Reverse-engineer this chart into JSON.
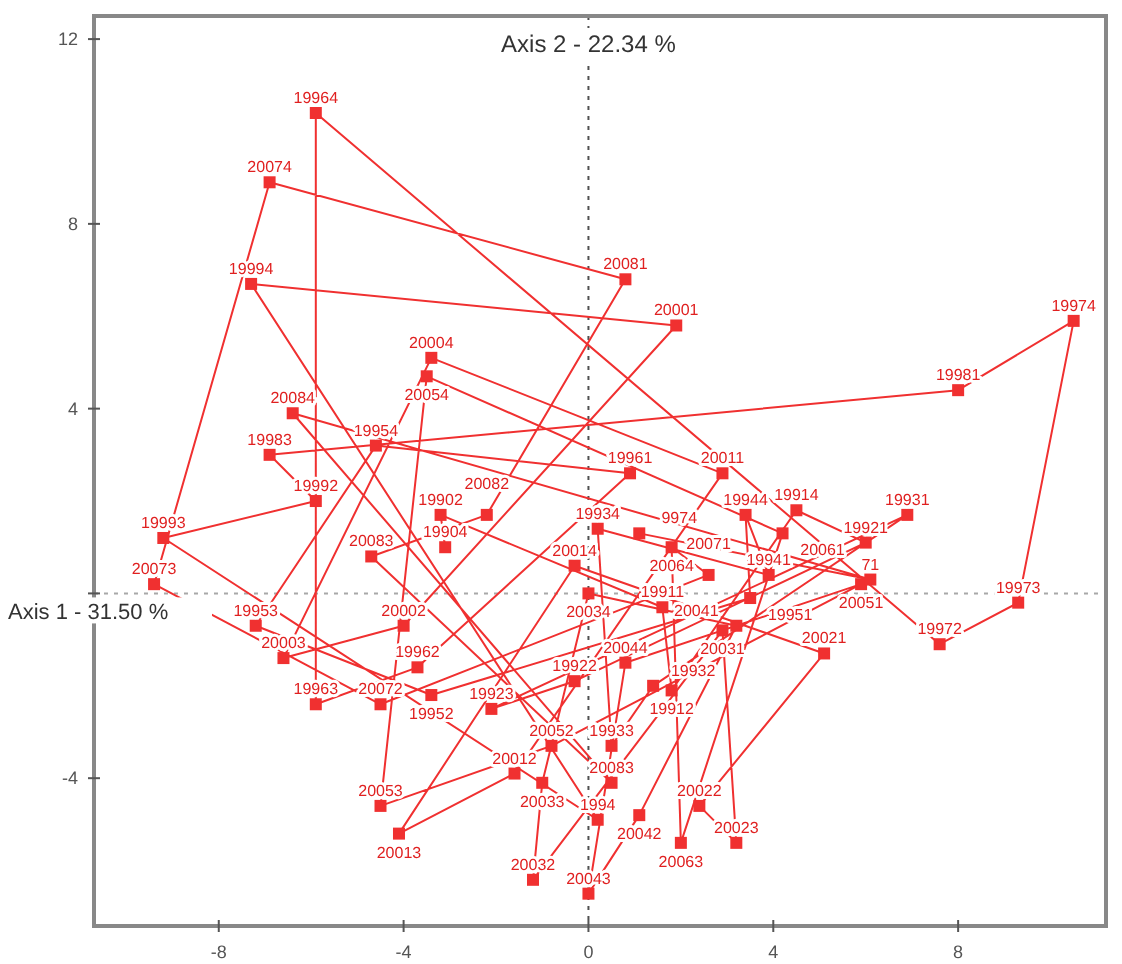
{
  "chart_data": {
    "type": "line",
    "xlabel": "Axis 1  -  31.50 %",
    "ylabel": "Axis 2  -  22.34 %",
    "xlim": [
      -10.7,
      11.2
    ],
    "ylim": [
      -7.2,
      12.5
    ],
    "xticks": [
      -8,
      -4,
      0,
      4,
      8
    ],
    "yticks": [
      -4,
      {
        "value": 0,
        "label": null
      },
      4,
      8,
      12
    ],
    "grid": false,
    "marker": "square",
    "line_style": "solid",
    "ref_lines": [
      {
        "axis": "x",
        "value": 0,
        "line_style": "dotted",
        "color": "#505050"
      },
      {
        "axis": "y",
        "value": 0,
        "line_style": "dotted",
        "color": "#a8a8a8"
      }
    ],
    "series": [
      {
        "color": "#f03030",
        "x": [
          -3.1,
          -3.2,
          1.6,
          1.8,
          4.5,
          6.0,
          -0.3,
          -2.1,
          6.9,
          1.4,
          0.5,
          0.2,
          3.9,
          3.4,
          3.5,
          -3.4,
          -7.2,
          -4.6,
          0.9,
          -3.7,
          -5.9,
          -5.9,
          7.6,
          9.3,
          10.5,
          8.0,
          -6.9,
          -5.9,
          -9.2,
          0.2,
          -7.3,
          1.9,
          -4.0,
          -6.6,
          -3.4,
          2.9,
          -1.6,
          -4.1,
          -0.3,
          5.1,
          2.4,
          3.2,
          2.9,
          -1.2,
          -1.0,
          0.0,
          3.2,
          1.1,
          0.0,
          0.8,
          5.9,
          -0.8,
          -4.5,
          -3.5,
          4.2,
          2.0,
          1.8,
          2.6,
          -4.5,
          -9.4,
          -6.9,
          0.8,
          -2.2,
          -4.7,
          0.5,
          -6.4,
          6.1,
          1.1
        ],
        "values": [
          1.0,
          1.7,
          -0.3,
          -2.1,
          1.8,
          1.1,
          -1.9,
          -2.5,
          1.7,
          -2.0,
          -3.3,
          1.4,
          0.4,
          1.7,
          -0.1,
          -2.2,
          -0.7,
          3.2,
          2.6,
          -1.6,
          -2.4,
          10.4,
          -1.1,
          -0.2,
          5.9,
          4.4,
          3.0,
          2.0,
          1.2,
          -4.9,
          6.7,
          5.8,
          -0.7,
          -1.4,
          5.1,
          2.6,
          -3.9,
          -5.2,
          0.6,
          -1.3,
          -4.6,
          -5.4,
          -0.8,
          -6.2,
          -4.1,
          0.0,
          -0.7,
          -4.8,
          -6.5,
          -1.5,
          0.2,
          -3.3,
          -4.6,
          4.7,
          1.3,
          -5.4,
          1.0,
          0.4,
          -2.4,
          0.2,
          8.9,
          6.8,
          1.7,
          0.8,
          -4.1,
          3.9,
          0.3,
          1.3
        ]
      }
    ],
    "annotations": [
      {
        "text": "19904",
        "x": -3.1,
        "y": 1.0
      },
      {
        "text": "19902",
        "x": -3.2,
        "y": 1.7
      },
      {
        "text": "19911",
        "x": 1.6,
        "y": -0.3
      },
      {
        "text": "19912",
        "x": 1.8,
        "y": -2.1
      },
      {
        "text": "19914",
        "x": 4.5,
        "y": 1.8
      },
      {
        "text": "19921",
        "x": 6.0,
        "y": 1.1
      },
      {
        "text": "19922",
        "x": -0.3,
        "y": -1.9
      },
      {
        "text": "19923",
        "x": -2.1,
        "y": -2.5
      },
      {
        "text": "19931",
        "x": 6.9,
        "y": 1.7
      },
      {
        "text": "19932",
        "x": 1.4,
        "y": -2.0
      },
      {
        "text": "19933",
        "x": 0.5,
        "y": -3.3
      },
      {
        "text": "19934",
        "x": 0.2,
        "y": 1.4
      },
      {
        "text": "19941",
        "x": 3.9,
        "y": 0.4
      },
      {
        "text": "19944",
        "x": 3.4,
        "y": 1.7
      },
      {
        "text": "19951",
        "x": 3.5,
        "y": -0.1
      },
      {
        "text": "19952",
        "x": -3.4,
        "y": -2.2
      },
      {
        "text": "19953",
        "x": -7.2,
        "y": -0.7
      },
      {
        "text": "19954",
        "x": -4.6,
        "y": 3.2
      },
      {
        "text": "19961",
        "x": 0.9,
        "y": 2.6
      },
      {
        "text": "19962",
        "x": -3.7,
        "y": -1.6
      },
      {
        "text": "19963",
        "x": -5.9,
        "y": -2.4
      },
      {
        "text": "19964",
        "x": -5.9,
        "y": 10.4
      },
      {
        "text": "19972",
        "x": 7.6,
        "y": -1.1
      },
      {
        "text": "19973",
        "x": 9.3,
        "y": -0.2
      },
      {
        "text": "19974",
        "x": 10.5,
        "y": 5.9
      },
      {
        "text": "19981",
        "x": 8.0,
        "y": 4.4
      },
      {
        "text": "19983",
        "x": -6.9,
        "y": 3.0
      },
      {
        "text": "19992",
        "x": -5.9,
        "y": 2.0
      },
      {
        "text": "19993",
        "x": -9.2,
        "y": 1.2
      },
      {
        "text": "1994",
        "x": 0.2,
        "y": -4.9
      },
      {
        "text": "19994",
        "x": -7.3,
        "y": 6.7
      },
      {
        "text": "20001",
        "x": 1.9,
        "y": 5.8
      },
      {
        "text": "20002",
        "x": -4.0,
        "y": -0.7
      },
      {
        "text": "20003",
        "x": -6.6,
        "y": -1.4
      },
      {
        "text": "20004",
        "x": -3.4,
        "y": 5.1
      },
      {
        "text": "20011",
        "x": 2.9,
        "y": 2.6
      },
      {
        "text": "20012",
        "x": -1.6,
        "y": -3.9
      },
      {
        "text": "20013",
        "x": -4.1,
        "y": -5.2
      },
      {
        "text": "20014",
        "x": -0.3,
        "y": 0.6
      },
      {
        "text": "20021",
        "x": 5.1,
        "y": -1.3
      },
      {
        "text": "20022",
        "x": 2.4,
        "y": -4.6
      },
      {
        "text": "20023",
        "x": 3.2,
        "y": -5.4
      },
      {
        "text": "20031",
        "x": 2.9,
        "y": -0.8
      },
      {
        "text": "20032",
        "x": -1.2,
        "y": -6.2
      },
      {
        "text": "20033",
        "x": -1.0,
        "y": -4.1
      },
      {
        "text": "20034",
        "x": 0.0,
        "y": 0.0
      },
      {
        "text": "20041",
        "x": 3.2,
        "y": -0.7
      },
      {
        "text": "20042",
        "x": 1.1,
        "y": -4.8
      },
      {
        "text": "20043",
        "x": 0.0,
        "y": -6.5
      },
      {
        "text": "20044",
        "x": 0.8,
        "y": -1.5
      },
      {
        "text": "20051",
        "x": 5.9,
        "y": 0.2
      },
      {
        "text": "20052",
        "x": -0.8,
        "y": -3.3
      },
      {
        "text": "20053",
        "x": -4.5,
        "y": -4.6
      },
      {
        "text": "20054",
        "x": -3.5,
        "y": 4.7
      },
      {
        "text": "20061",
        "x": 4.2,
        "y": 1.3
      },
      {
        "text": "20063",
        "x": 2.0,
        "y": -5.4
      },
      {
        "text": "20064",
        "x": 1.8,
        "y": 1.0
      },
      {
        "text": "20071",
        "x": 2.6,
        "y": 0.4
      },
      {
        "text": "20072",
        "x": -4.5,
        "y": -2.4
      },
      {
        "text": "20073",
        "x": -9.4,
        "y": 0.2
      },
      {
        "text": "20074",
        "x": -6.9,
        "y": 8.9
      },
      {
        "text": "20081",
        "x": 0.8,
        "y": 6.8
      },
      {
        "text": "20082",
        "x": -2.2,
        "y": 1.7
      },
      {
        "text": "20083",
        "x": -4.7,
        "y": 0.8
      },
      {
        "text": "20083",
        "x": 0.5,
        "y": -4.1
      },
      {
        "text": "20084",
        "x": -6.4,
        "y": 3.9
      },
      {
        "text": "71",
        "x": 6.1,
        "y": 0.3
      },
      {
        "text": "9974",
        "x": 1.1,
        "y": 1.3
      }
    ]
  }
}
